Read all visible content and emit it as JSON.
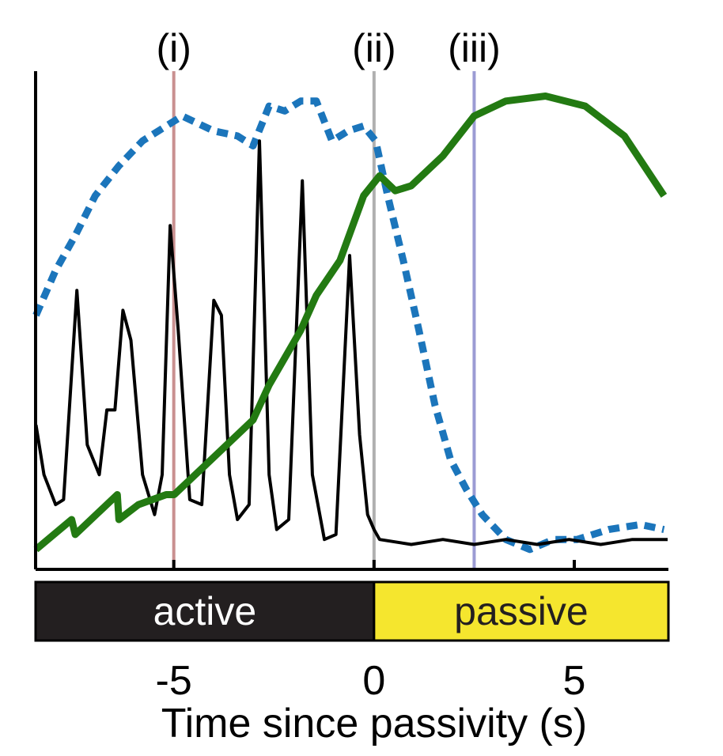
{
  "chart_data": {
    "type": "line",
    "x_label": "Time since passivity (s)",
    "xlim": [
      -8.45,
      7.35
    ],
    "xticks": [
      -5,
      0,
      5
    ],
    "ylim": [
      0,
      1
    ],
    "reference_lines": [
      {
        "x": -5,
        "label": "(i)",
        "color": "#c99090"
      },
      {
        "x": 0,
        "label": "(ii)",
        "color": "#b0b0b0"
      },
      {
        "x": 2.5,
        "label": "(iii)",
        "color": "#9c9cd4"
      }
    ],
    "phases": [
      {
        "label": "active",
        "start": -8.45,
        "end": 0,
        "color": "#231f20",
        "text_color": "#ffffff"
      },
      {
        "label": "passive",
        "start": 0,
        "end": 7.35,
        "color": "#f5e62e",
        "text_color": "#231f20"
      }
    ],
    "series": [
      {
        "color": "#000000",
        "style": "solid",
        "width": 4,
        "x": [
          -8.44,
          -8.24,
          -7.95,
          -7.75,
          -7.42,
          -7.16,
          -6.86,
          -6.67,
          -6.47,
          -6.27,
          -6.07,
          -5.78,
          -5.48,
          -5.29,
          -5.09,
          -4.89,
          -4.6,
          -4.3,
          -4.0,
          -3.81,
          -3.61,
          -3.41,
          -3.12,
          -2.86,
          -2.62,
          -2.43,
          -2.13,
          -1.79,
          -1.54,
          -1.24,
          -0.95,
          -0.61,
          -0.36,
          -0.16,
          0,
          0.14,
          0.93,
          1.72,
          2.5,
          3.29,
          4.08,
          4.87,
          5.66,
          6.45,
          7.33
        ],
        "values": [
          0.29,
          0.19,
          0.13,
          0.14,
          0.56,
          0.25,
          0.19,
          0.32,
          0.32,
          0.52,
          0.46,
          0.19,
          0.11,
          0.19,
          0.69,
          0.48,
          0.14,
          0.13,
          0.54,
          0.51,
          0.19,
          0.1,
          0.13,
          0.86,
          0.19,
          0.08,
          0.1,
          0.78,
          0.19,
          0.06,
          0.07,
          0.63,
          0.27,
          0.11,
          0.08,
          0.06,
          0.05,
          0.06,
          0.05,
          0.06,
          0.05,
          0.06,
          0.05,
          0.06,
          0.06
        ]
      },
      {
        "color": "#1b75bb",
        "style": "dashed",
        "width": 9,
        "x": [
          -8.44,
          -7.95,
          -7.46,
          -6.96,
          -6.37,
          -5.78,
          -4.79,
          -4.0,
          -3.41,
          -3.02,
          -2.62,
          -2.23,
          -1.83,
          -1.44,
          -1.05,
          -0.65,
          -0.26,
          0.04,
          0.34,
          0.73,
          1.12,
          1.52,
          1.91,
          2.31,
          2.7,
          3.29,
          3.89,
          4.48,
          5.07,
          5.86,
          6.65,
          7.24
        ],
        "values": [
          0.51,
          0.6,
          0.67,
          0.75,
          0.81,
          0.86,
          0.91,
          0.88,
          0.87,
          0.85,
          0.93,
          0.92,
          0.94,
          0.94,
          0.86,
          0.88,
          0.89,
          0.86,
          0.75,
          0.62,
          0.48,
          0.33,
          0.22,
          0.16,
          0.11,
          0.06,
          0.04,
          0.06,
          0.06,
          0.08,
          0.09,
          0.08
        ]
      },
      {
        "color": "#237a12",
        "style": "solid",
        "width": 9,
        "x": [
          -8.44,
          -7.55,
          -7.46,
          -6.41,
          -6.37,
          -5.88,
          -5.19,
          -4.99,
          -4.2,
          -3.02,
          -2.62,
          -1.83,
          -1.44,
          -0.85,
          -0.26,
          0.14,
          0.53,
          0.93,
          1.72,
          2.5,
          3.29,
          4.28,
          5.27,
          6.25,
          7.24
        ],
        "values": [
          0.04,
          0.1,
          0.07,
          0.15,
          0.1,
          0.13,
          0.15,
          0.15,
          0.21,
          0.3,
          0.37,
          0.48,
          0.55,
          0.62,
          0.75,
          0.79,
          0.76,
          0.77,
          0.83,
          0.91,
          0.94,
          0.95,
          0.93,
          0.87,
          0.75
        ]
      }
    ]
  }
}
